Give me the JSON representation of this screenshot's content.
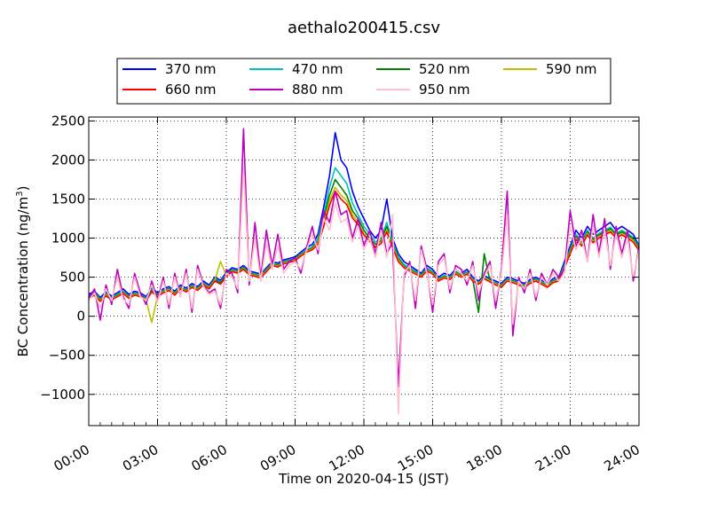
{
  "chart_data": {
    "type": "line",
    "title": "aethalo200415.csv",
    "xlabel": "Time on 2020-04-15 (JST)",
    "ylabel": "BC Concentration (ng/m",
    "ylabel_sup": "3",
    "ylabel_end": ")",
    "x_unit": "hours",
    "xlim": [
      0,
      24
    ],
    "ylim": [
      -1400,
      2550
    ],
    "grid": true,
    "legend_position": "top, outside plot",
    "x_ticks": [
      0,
      3,
      6,
      9,
      12,
      15,
      18,
      21,
      24
    ],
    "x_tick_labels": [
      "00:00",
      "03:00",
      "06:00",
      "09:00",
      "12:00",
      "15:00",
      "18:00",
      "21:00",
      "24:00"
    ],
    "y_ticks": [
      -1000,
      -500,
      0,
      500,
      1000,
      1500,
      2000,
      2500
    ],
    "y_tick_labels": [
      "−1000",
      "−500",
      "0",
      "500",
      "1000",
      "1500",
      "2000",
      "2500"
    ],
    "x": [
      0.0,
      0.25,
      0.5,
      0.75,
      1.0,
      1.25,
      1.5,
      1.75,
      2.0,
      2.25,
      2.5,
      2.75,
      3.0,
      3.25,
      3.5,
      3.75,
      4.0,
      4.25,
      4.5,
      4.75,
      5.0,
      5.25,
      5.5,
      5.75,
      6.0,
      6.25,
      6.5,
      6.75,
      7.0,
      7.25,
      7.5,
      7.75,
      8.0,
      8.25,
      8.5,
      8.75,
      9.0,
      9.25,
      9.5,
      9.75,
      10.0,
      10.25,
      10.5,
      10.75,
      11.0,
      11.25,
      11.5,
      11.75,
      12.0,
      12.25,
      12.5,
      12.75,
      13.0,
      13.25,
      13.5,
      13.75,
      14.0,
      14.25,
      14.5,
      14.75,
      15.0,
      15.25,
      15.5,
      15.75,
      16.0,
      16.25,
      16.5,
      16.75,
      17.0,
      17.25,
      17.5,
      17.75,
      18.0,
      18.25,
      18.5,
      18.75,
      19.0,
      19.25,
      19.5,
      19.75,
      20.0,
      20.25,
      20.5,
      20.75,
      21.0,
      21.25,
      21.5,
      21.75,
      22.0,
      22.25,
      22.5,
      22.75,
      23.0,
      23.25,
      23.5,
      23.75,
      24.0
    ],
    "series": [
      {
        "name": "370 nm",
        "color": "#0000ff",
        "values": [
          280,
          320,
          240,
          310,
          260,
          300,
          350,
          280,
          320,
          300,
          250,
          360,
          300,
          350,
          380,
          320,
          400,
          360,
          420,
          380,
          450,
          400,
          500,
          460,
          560,
          620,
          600,
          650,
          580,
          560,
          540,
          620,
          700,
          680,
          720,
          740,
          760,
          820,
          880,
          920,
          1050,
          1400,
          1800,
          2350,
          2000,
          1900,
          1600,
          1400,
          1250,
          1100,
          1000,
          1100,
          1500,
          1000,
          800,
          700,
          650,
          600,
          550,
          650,
          600,
          500,
          550,
          520,
          600,
          550,
          600,
          500,
          450,
          520,
          480,
          450,
          420,
          500,
          480,
          450,
          420,
          470,
          500,
          460,
          420,
          480,
          500,
          700,
          900,
          1100,
          1000,
          1150,
          1050,
          1100,
          1150,
          1200,
          1100,
          1150,
          1100,
          1050,
          900
        ]
      },
      {
        "name": "470 nm",
        "color": "#00bfbf",
        "values": [
          260,
          300,
          220,
          290,
          240,
          280,
          320,
          260,
          300,
          280,
          230,
          340,
          280,
          330,
          360,
          300,
          380,
          340,
          400,
          360,
          430,
          380,
          480,
          440,
          540,
          600,
          580,
          630,
          560,
          540,
          520,
          600,
          680,
          660,
          700,
          720,
          740,
          800,
          850,
          890,
          1000,
          1300,
          1650,
          1900,
          1800,
          1700,
          1450,
          1300,
          1150,
          1050,
          950,
          1000,
          1200,
          950,
          760,
          660,
          620,
          580,
          530,
          620,
          570,
          480,
          520,
          500,
          580,
          530,
          570,
          480,
          430,
          500,
          460,
          430,
          400,
          480,
          460,
          430,
          400,
          450,
          480,
          440,
          400,
          460,
          480,
          660,
          860,
          1050,
          960,
          1100,
          1000,
          1060,
          1100,
          1140,
          1060,
          1100,
          1060,
          1010,
          880
        ]
      },
      {
        "name": "520 nm",
        "color": "#008000",
        "values": [
          250,
          290,
          210,
          280,
          230,
          270,
          310,
          250,
          290,
          270,
          220,
          330,
          270,
          320,
          350,
          290,
          370,
          330,
          390,
          350,
          420,
          370,
          470,
          430,
          530,
          590,
          570,
          620,
          550,
          530,
          510,
          590,
          670,
          650,
          690,
          710,
          730,
          790,
          840,
          870,
          960,
          1250,
          1550,
          1750,
          1650,
          1550,
          1350,
          1250,
          1100,
          1000,
          920,
          970,
          1150,
          920,
          740,
          640,
          600,
          560,
          520,
          600,
          560,
          470,
          510,
          490,
          560,
          520,
          560,
          470,
          50,
          800,
          450,
          420,
          390,
          470,
          450,
          420,
          390,
          440,
          470,
          430,
          390,
          450,
          470,
          640,
          840,
          1020,
          940,
          1080,
          980,
          1040,
          1080,
          1120,
          1040,
          1080,
          1040,
          990,
          860
        ]
      },
      {
        "name": "590 nm",
        "color": "#bfbf00",
        "values": [
          240,
          280,
          200,
          270,
          220,
          260,
          300,
          240,
          280,
          260,
          210,
          -80,
          260,
          310,
          340,
          280,
          360,
          320,
          380,
          340,
          410,
          360,
          460,
          700,
          520,
          580,
          560,
          610,
          540,
          520,
          500,
          580,
          660,
          640,
          680,
          700,
          720,
          780,
          830,
          860,
          940,
          1200,
          1480,
          1650,
          1550,
          1480,
          1300,
          1200,
          1060,
          980,
          900,
          950,
          1100,
          900,
          720,
          630,
          590,
          550,
          510,
          590,
          550,
          460,
          500,
          480,
          550,
          510,
          550,
          460,
          420,
          490,
          450,
          410,
          380,
          460,
          440,
          410,
          380,
          430,
          460,
          420,
          380,
          440,
          460,
          630,
          820,
          1000,
          920,
          1060,
          960,
          1020,
          1060,
          1100,
          1020,
          1060,
          1020,
          970,
          850
        ]
      },
      {
        "name": "660 nm",
        "color": "#ff0000",
        "values": [
          230,
          270,
          190,
          260,
          210,
          250,
          290,
          230,
          270,
          250,
          200,
          310,
          250,
          300,
          330,
          270,
          350,
          310,
          370,
          330,
          400,
          350,
          450,
          410,
          510,
          570,
          550,
          600,
          530,
          510,
          490,
          570,
          650,
          630,
          670,
          690,
          710,
          770,
          820,
          850,
          920,
          1150,
          1420,
          1600,
          1500,
          1430,
          1260,
          1170,
          1040,
          960,
          880,
          930,
          1080,
          880,
          700,
          620,
          580,
          540,
          500,
          580,
          540,
          450,
          490,
          470,
          540,
          500,
          540,
          450,
          410,
          480,
          440,
          400,
          370,
          450,
          430,
          400,
          370,
          420,
          450,
          410,
          370,
          430,
          450,
          620,
          800,
          980,
          900,
          1040,
          940,
          1000,
          1040,
          1080,
          1000,
          1040,
          1000,
          950,
          840
        ]
      },
      {
        "name": "880 nm",
        "color": "#bf00bf",
        "values": [
          220,
          350,
          -50,
          400,
          150,
          600,
          250,
          100,
          550,
          300,
          150,
          450,
          200,
          500,
          100,
          550,
          250,
          600,
          50,
          650,
          400,
          300,
          350,
          100,
          600,
          550,
          300,
          2400,
          400,
          1200,
          500,
          1100,
          650,
          1050,
          600,
          700,
          750,
          550,
          880,
          1150,
          800,
          1350,
          1200,
          1600,
          1300,
          1350,
          1000,
          1250,
          900,
          1100,
          800,
          1200,
          800,
          950,
          -900,
          500,
          700,
          100,
          900,
          600,
          50,
          700,
          800,
          300,
          650,
          600,
          400,
          700,
          200,
          550,
          700,
          100,
          600,
          1600,
          -250,
          500,
          300,
          600,
          200,
          550,
          400,
          600,
          500,
          600,
          1350,
          900,
          1100,
          700,
          1300,
          800,
          1250,
          600,
          1150,
          800,
          1100,
          450,
          900
        ]
      },
      {
        "name": "950 nm",
        "color": "#ffc0cb",
        "values": [
          200,
          300,
          100,
          350,
          200,
          500,
          220,
          150,
          500,
          250,
          200,
          400,
          180,
          450,
          150,
          500,
          250,
          550,
          100,
          600,
          380,
          280,
          320,
          150,
          550,
          500,
          350,
          1900,
          450,
          1000,
          450,
          950,
          600,
          900,
          550,
          650,
          700,
          600,
          850,
          1050,
          850,
          1250,
          1100,
          1450,
          1200,
          1250,
          950,
          1150,
          850,
          1000,
          750,
          1100,
          750,
          1300,
          -1250,
          550,
          650,
          200,
          850,
          550,
          150,
          650,
          750,
          350,
          600,
          550,
          450,
          650,
          300,
          500,
          650,
          200,
          550,
          1300,
          -100,
          450,
          350,
          550,
          250,
          500,
          400,
          550,
          450,
          550,
          1150,
          850,
          1000,
          700,
          1150,
          750,
          1100,
          650,
          1050,
          750,
          1000,
          500,
          850
        ]
      }
    ]
  }
}
